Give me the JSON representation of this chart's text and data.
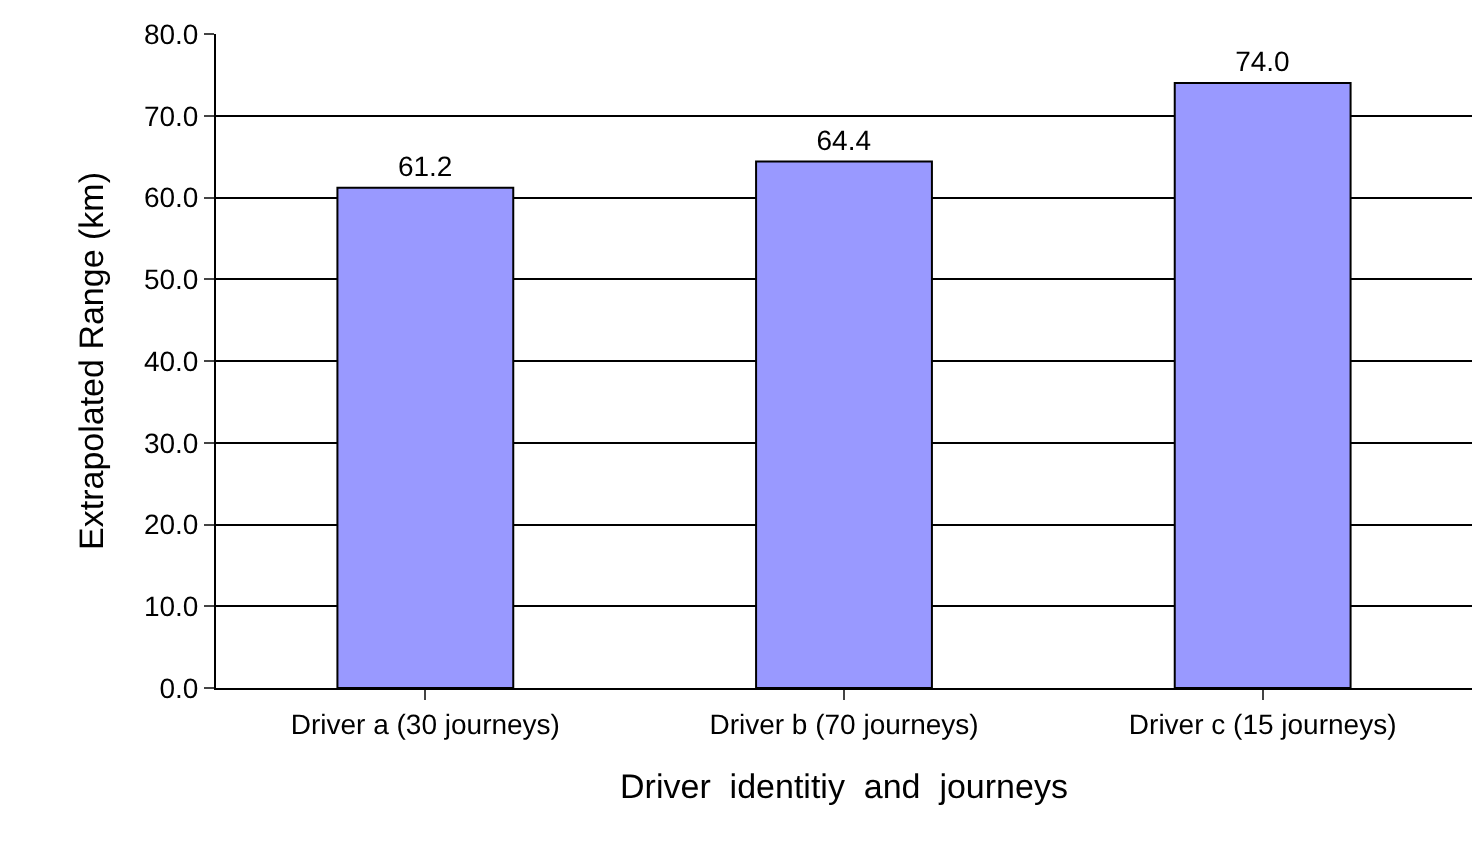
{
  "chart_data": {
    "type": "bar",
    "xlabel": "Driver  identitiy  and  journeys",
    "ylabel": "Extrapolated Range (km)",
    "categories": [
      "Driver a (30 journeys)",
      "Driver b (70 journeys)",
      "Driver c (15 journeys)"
    ],
    "values": [
      61.2,
      64.4,
      74.0
    ],
    "value_labels": [
      "61.2",
      "64.4",
      "74.0"
    ],
    "color": "#9999ff",
    "ylim": [
      0,
      80
    ],
    "yticks": [
      {
        "value": 0,
        "label": "0.0"
      },
      {
        "value": 10,
        "label": "10.0"
      },
      {
        "value": 20,
        "label": "20.0"
      },
      {
        "value": 30,
        "label": "30.0"
      },
      {
        "value": 40,
        "label": "40.0"
      },
      {
        "value": 50,
        "label": "50.0"
      },
      {
        "value": 60,
        "label": "60.0"
      },
      {
        "value": 70,
        "label": "70.0"
      },
      {
        "value": 80,
        "label": "80.0"
      }
    ],
    "grid": "y",
    "legend": false
  }
}
